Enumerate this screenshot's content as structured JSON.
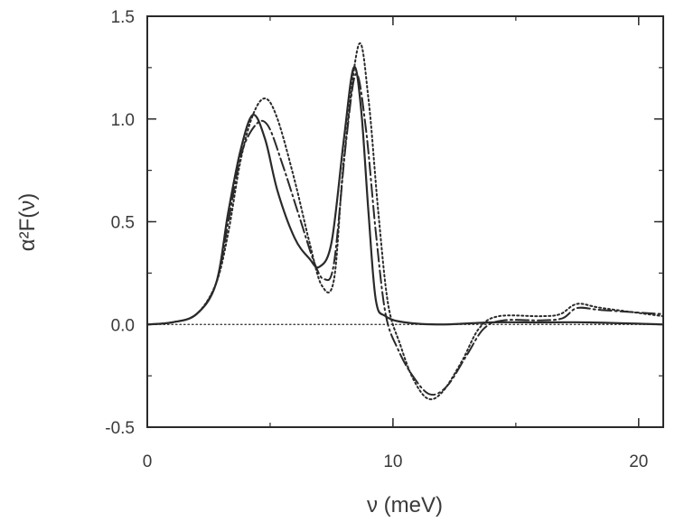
{
  "chart_data": {
    "type": "line",
    "title": "",
    "xlabel": "ν (meV)",
    "ylabel": "α²F(ν)",
    "xlim": [
      0,
      21
    ],
    "ylim": [
      -0.5,
      1.5
    ],
    "grid": false,
    "legend": "none",
    "x_ticks": [
      {
        "value": 0,
        "label": "0"
      },
      {
        "value": 10,
        "label": "10"
      },
      {
        "value": 20,
        "label": "20"
      }
    ],
    "y_ticks": [
      {
        "value": -0.5,
        "label": "-0.5"
      },
      {
        "value": 0.0,
        "label": "0.0"
      },
      {
        "value": 0.5,
        "label": "0.5"
      },
      {
        "value": 1.0,
        "label": "1.0"
      },
      {
        "value": 1.5,
        "label": "1.5"
      }
    ],
    "series": [
      {
        "style": "solid",
        "color": "#2a2a2a",
        "points": [
          [
            0,
            0
          ],
          [
            1,
            0.01
          ],
          [
            2,
            0.05
          ],
          [
            2.8,
            0.2
          ],
          [
            3.3,
            0.55
          ],
          [
            3.8,
            0.85
          ],
          [
            4.3,
            1.02
          ],
          [
            4.8,
            0.9
          ],
          [
            5.3,
            0.65
          ],
          [
            6,
            0.42
          ],
          [
            6.6,
            0.32
          ],
          [
            7,
            0.28
          ],
          [
            7.5,
            0.4
          ],
          [
            8,
            0.9
          ],
          [
            8.4,
            1.25
          ],
          [
            8.7,
            1.05
          ],
          [
            9,
            0.55
          ],
          [
            9.3,
            0.12
          ],
          [
            9.7,
            0.04
          ],
          [
            10.5,
            0.01
          ],
          [
            12,
            0
          ],
          [
            14,
            0.01
          ],
          [
            16,
            0.01
          ],
          [
            18,
            0.01
          ],
          [
            21,
            0.0
          ]
        ]
      },
      {
        "style": "dash-dot",
        "color": "#2a2a2a",
        "points": [
          [
            0,
            0
          ],
          [
            1,
            0.01
          ],
          [
            2,
            0.05
          ],
          [
            2.8,
            0.2
          ],
          [
            3.3,
            0.5
          ],
          [
            3.8,
            0.82
          ],
          [
            4.4,
            0.97
          ],
          [
            4.9,
            0.97
          ],
          [
            5.5,
            0.78
          ],
          [
            6.2,
            0.52
          ],
          [
            6.8,
            0.3
          ],
          [
            7.2,
            0.22
          ],
          [
            7.6,
            0.3
          ],
          [
            8.1,
            0.9
          ],
          [
            8.5,
            1.22
          ],
          [
            8.9,
            0.95
          ],
          [
            9.3,
            0.45
          ],
          [
            9.7,
            0.05
          ],
          [
            10.2,
            -0.12
          ],
          [
            10.8,
            -0.25
          ],
          [
            11.5,
            -0.34
          ],
          [
            12.2,
            -0.3
          ],
          [
            13,
            -0.15
          ],
          [
            13.7,
            -0.02
          ],
          [
            14.5,
            0.02
          ],
          [
            16,
            0.02
          ],
          [
            16.9,
            0.03
          ],
          [
            17.5,
            0.08
          ],
          [
            18.5,
            0.07
          ],
          [
            21,
            0.05
          ]
        ]
      },
      {
        "style": "dotted",
        "color": "#2a2a2a",
        "points": [
          [
            0,
            0
          ],
          [
            1,
            0.01
          ],
          [
            2,
            0.05
          ],
          [
            2.8,
            0.2
          ],
          [
            3.3,
            0.45
          ],
          [
            3.8,
            0.8
          ],
          [
            4.3,
            1.02
          ],
          [
            4.8,
            1.1
          ],
          [
            5.3,
            1.0
          ],
          [
            6,
            0.7
          ],
          [
            6.6,
            0.4
          ],
          [
            7.1,
            0.19
          ],
          [
            7.6,
            0.22
          ],
          [
            8,
            0.8
          ],
          [
            8.6,
            1.36
          ],
          [
            9,
            1.1
          ],
          [
            9.4,
            0.55
          ],
          [
            9.8,
            0.1
          ],
          [
            10.3,
            -0.1
          ],
          [
            10.8,
            -0.26
          ],
          [
            11.4,
            -0.36
          ],
          [
            12,
            -0.33
          ],
          [
            12.8,
            -0.18
          ],
          [
            13.5,
            -0.02
          ],
          [
            14.3,
            0.04
          ],
          [
            16,
            0.04
          ],
          [
            16.8,
            0.05
          ],
          [
            17.5,
            0.1
          ],
          [
            18.5,
            0.08
          ],
          [
            21,
            0.04
          ]
        ]
      },
      {
        "style": "fine-dotted",
        "color": "#2a2a2a",
        "points": [
          [
            0,
            0
          ],
          [
            21,
            0
          ]
        ]
      }
    ]
  }
}
